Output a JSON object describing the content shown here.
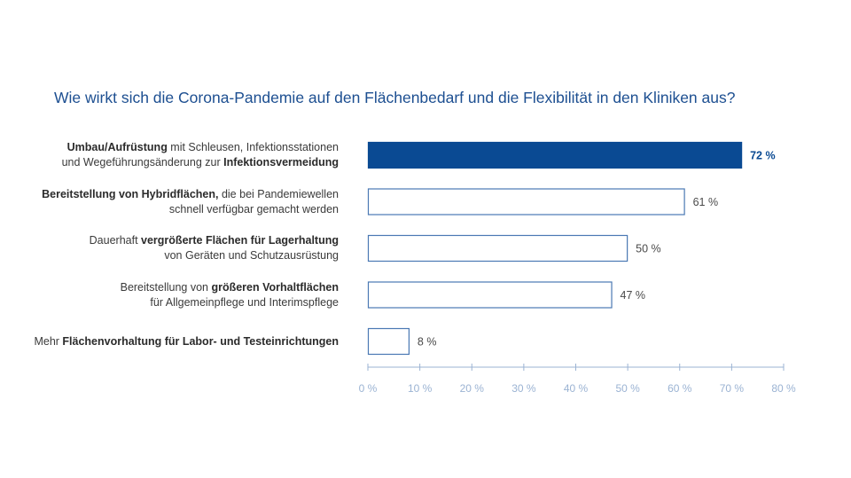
{
  "title": "Wie wirkt sich die Corona-Pandemie auf den Flächenbedarf und die Flexibilität in den Kliniken aus?",
  "colors": {
    "accent": "#0a4a93",
    "outline": "#4a78b3",
    "axis": "#9bb3d3",
    "title": "#1d4f91"
  },
  "chart_data": {
    "type": "bar",
    "orientation": "horizontal",
    "title": "Wie wirkt sich die Corona-Pandemie auf den Flächenbedarf und die Flexibilität in den Kliniken aus?",
    "xlim": [
      0,
      80
    ],
    "x_ticks": [
      "0 %",
      "10 %",
      "20 %",
      "30 %",
      "40 %",
      "50 %",
      "60 %",
      "70 %",
      "80 %"
    ],
    "grid": false,
    "legend": "none",
    "categories": [
      {
        "lines": [
          [
            {
              "t": "Umbau/Aufrüstung",
              "b": true
            },
            {
              "t": " mit Schleusen, Infektionsstationen",
              "b": false
            }
          ],
          [
            {
              "t": "und Wegeführungsänderung zur ",
              "b": false
            },
            {
              "t": "Infektionsvermeidung",
              "b": true
            }
          ]
        ],
        "value": 72,
        "value_label": "72 %",
        "highlight": true
      },
      {
        "lines": [
          [
            {
              "t": "Bereitstellung von Hybridflächen,",
              "b": true
            },
            {
              "t": " die bei Pandemiewellen",
              "b": false
            }
          ],
          [
            {
              "t": "schnell verfügbar gemacht werden",
              "b": false
            }
          ]
        ],
        "value": 61,
        "value_label": "61 %",
        "highlight": false
      },
      {
        "lines": [
          [
            {
              "t": "Dauerhaft ",
              "b": false
            },
            {
              "t": "vergrößerte Flächen für Lagerhaltung",
              "b": true
            }
          ],
          [
            {
              "t": "von Geräten und Schutzausrüstung",
              "b": false
            }
          ]
        ],
        "value": 50,
        "value_label": "50 %",
        "highlight": false
      },
      {
        "lines": [
          [
            {
              "t": "Bereitstellung von ",
              "b": false
            },
            {
              "t": "größeren Vorhaltflächen",
              "b": true
            }
          ],
          [
            {
              "t": "für Allgemeinpflege und Interimspflege",
              "b": false
            }
          ]
        ],
        "value": 47,
        "value_label": "47 %",
        "highlight": false
      },
      {
        "lines": [
          [
            {
              "t": "Mehr ",
              "b": false
            },
            {
              "t": "Flächenvorhaltung für Labor- und Testeinrichtungen",
              "b": true
            }
          ]
        ],
        "value": 8,
        "value_label": "8 %",
        "highlight": false
      }
    ]
  }
}
